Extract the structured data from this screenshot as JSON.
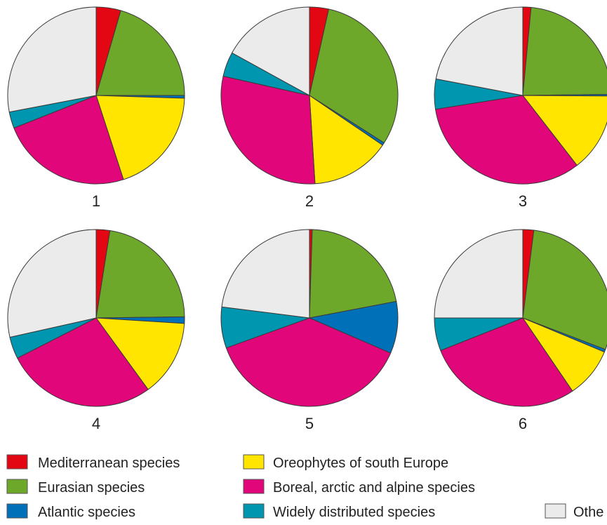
{
  "colors": {
    "mediterranean": "#e30613",
    "eurasian": "#6ea82b",
    "atlantic": "#0070b8",
    "oreophytes": "#ffe500",
    "boreal": "#e2067b",
    "widely": "#0096b0",
    "other": "#ebebeb"
  },
  "legend": [
    {
      "key": "mediterranean",
      "label": "Mediterranean species"
    },
    {
      "key": "eurasian",
      "label": "Eurasian species"
    },
    {
      "key": "atlantic",
      "label": "Atlantic species"
    },
    {
      "key": "oreophytes",
      "label": "Oreophytes of south Europe"
    },
    {
      "key": "boreal",
      "label": "Boreal, arctic and alpine species"
    },
    {
      "key": "widely",
      "label": "Widely distributed species"
    },
    {
      "key": "other",
      "label": "Othe"
    }
  ],
  "chart_data": [
    {
      "type": "pie",
      "label": "1",
      "slices": [
        {
          "key": "mediterranean",
          "value": 4.5
        },
        {
          "key": "eurasian",
          "value": 20.5
        },
        {
          "key": "atlantic",
          "value": 0.5
        },
        {
          "key": "oreophytes",
          "value": 19.5
        },
        {
          "key": "boreal",
          "value": 24.0
        },
        {
          "key": "widely",
          "value": 3.0
        },
        {
          "key": "other",
          "value": 28.0
        }
      ]
    },
    {
      "type": "pie",
      "label": "2",
      "slices": [
        {
          "key": "mediterranean",
          "value": 3.5
        },
        {
          "key": "eurasian",
          "value": 30.5
        },
        {
          "key": "atlantic",
          "value": 0.5
        },
        {
          "key": "oreophytes",
          "value": 14.5
        },
        {
          "key": "boreal",
          "value": 29.5
        },
        {
          "key": "widely",
          "value": 4.5
        },
        {
          "key": "other",
          "value": 17.0
        }
      ]
    },
    {
      "type": "pie",
      "label": "3",
      "slices": [
        {
          "key": "mediterranean",
          "value": 1.5
        },
        {
          "key": "eurasian",
          "value": 23.3
        },
        {
          "key": "atlantic",
          "value": 0.3
        },
        {
          "key": "oreophytes",
          "value": 14.4
        },
        {
          "key": "boreal",
          "value": 33.0
        },
        {
          "key": "widely",
          "value": 5.5
        },
        {
          "key": "other",
          "value": 22.0
        }
      ]
    },
    {
      "type": "pie",
      "label": "4",
      "slices": [
        {
          "key": "mediterranean",
          "value": 2.5
        },
        {
          "key": "eurasian",
          "value": 22.3
        },
        {
          "key": "atlantic",
          "value": 1.2
        },
        {
          "key": "oreophytes",
          "value": 14.0
        },
        {
          "key": "boreal",
          "value": 27.5
        },
        {
          "key": "widely",
          "value": 4.0
        },
        {
          "key": "other",
          "value": 28.5
        }
      ]
    },
    {
      "type": "pie",
      "label": "5",
      "slices": [
        {
          "key": "mediterranean",
          "value": 0.5
        },
        {
          "key": "eurasian",
          "value": 21.5
        },
        {
          "key": "atlantic",
          "value": 9.5
        },
        {
          "key": "oreophytes",
          "value": 0.0
        },
        {
          "key": "boreal",
          "value": 38.0
        },
        {
          "key": "widely",
          "value": 7.5
        },
        {
          "key": "other",
          "value": 23.0
        }
      ]
    },
    {
      "type": "pie",
      "label": "6",
      "slices": [
        {
          "key": "mediterranean",
          "value": 2.0
        },
        {
          "key": "eurasian",
          "value": 28.8
        },
        {
          "key": "atlantic",
          "value": 0.5
        },
        {
          "key": "oreophytes",
          "value": 9.2
        },
        {
          "key": "boreal",
          "value": 28.5
        },
        {
          "key": "widely",
          "value": 6.0
        },
        {
          "key": "other",
          "value": 25.0
        }
      ]
    }
  ]
}
